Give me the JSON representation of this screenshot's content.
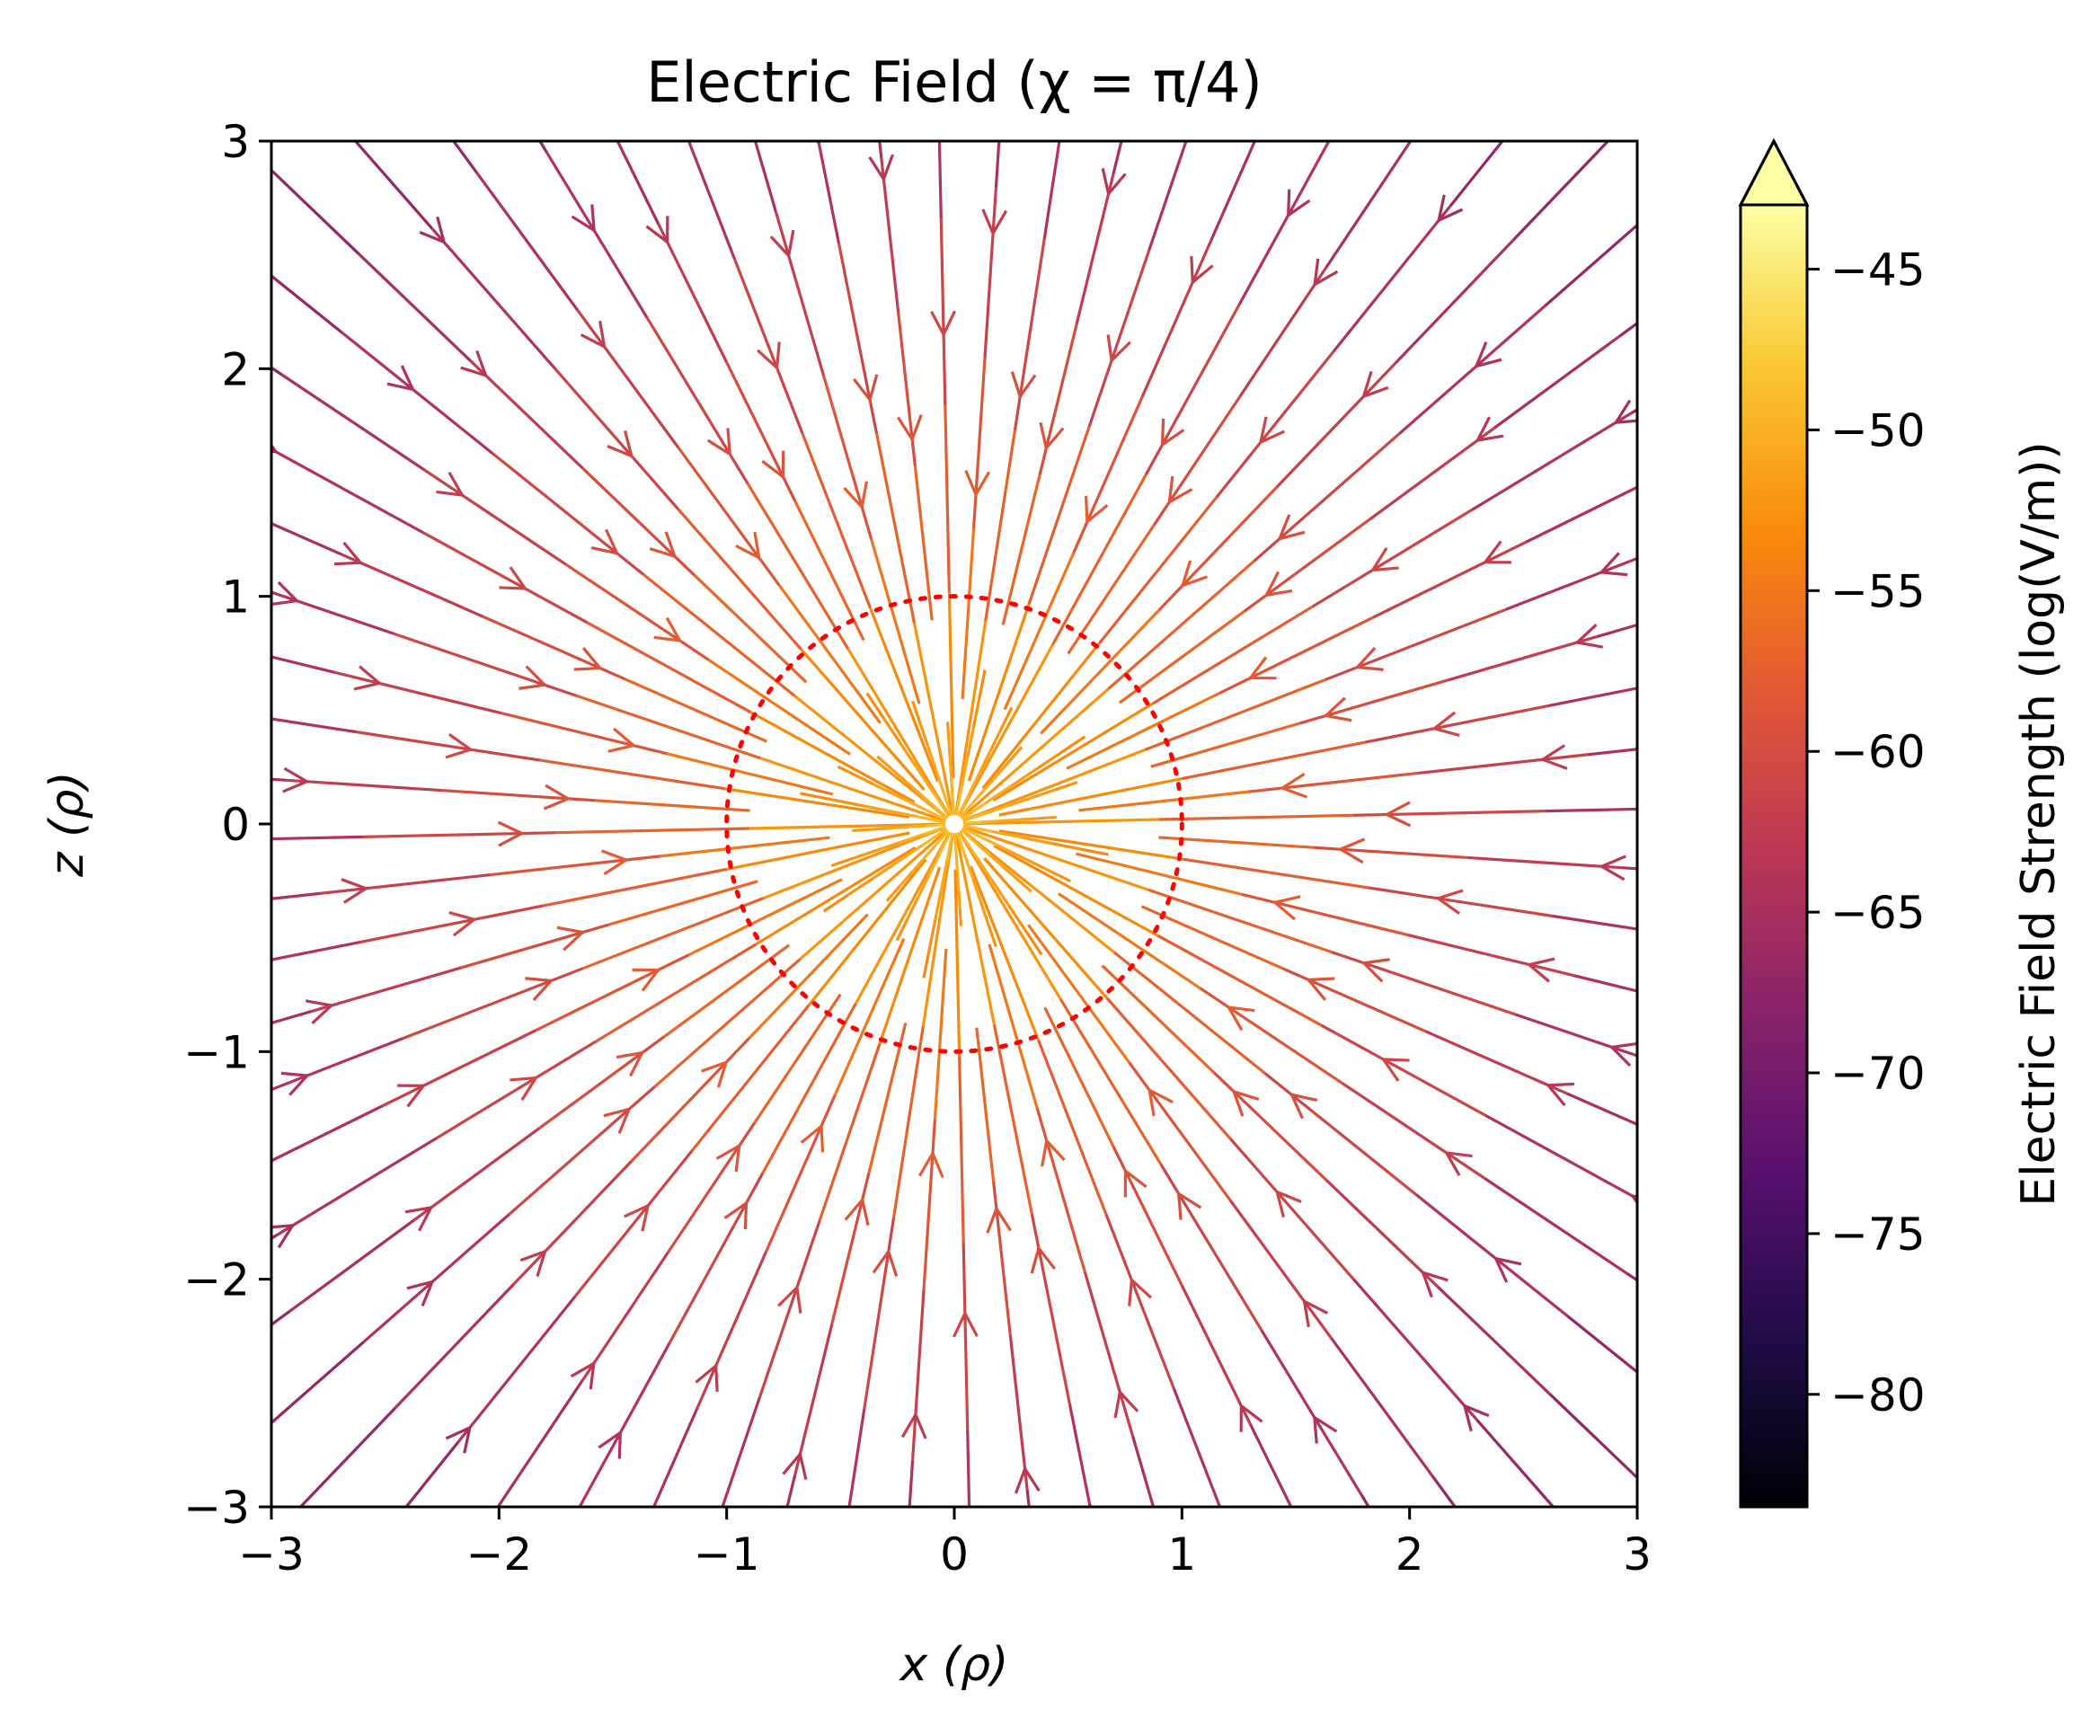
{
  "chart_data": {
    "type": "streamplot",
    "title": "Electric Field (χ = π/4)",
    "xlabel": "x (ρ)",
    "ylabel": "z (ρ)",
    "xlim": [
      -3,
      3
    ],
    "ylim": [
      -3,
      3
    ],
    "x_ticks": [
      "−3",
      "−2",
      "−1",
      "0",
      "1",
      "2",
      "3"
    ],
    "y_ticks": [
      "−3",
      "−2",
      "−1",
      "0",
      "1",
      "2",
      "3"
    ],
    "x_tick_values": [
      -3,
      -2,
      -1,
      0,
      1,
      2,
      3
    ],
    "y_tick_values": [
      -3,
      -2,
      -1,
      0,
      1,
      2,
      3
    ],
    "grid": false,
    "field_direction": "toward origin",
    "reference_circle": {
      "center": [
        0,
        0
      ],
      "radius": 1,
      "color": "#ff0000",
      "style": "dotted"
    },
    "colormap": "inferno",
    "colorbar": {
      "label": "Electric Field Strength (log(V/m))",
      "range": [
        -83.5,
        -43
      ],
      "extend": "max",
      "ticks": [
        "−45",
        "−50",
        "−55",
        "−60",
        "−65",
        "−70",
        "−75",
        "−80"
      ],
      "tick_values": [
        -45,
        -50,
        -55,
        -60,
        -65,
        -70,
        -75,
        -80
      ]
    }
  }
}
